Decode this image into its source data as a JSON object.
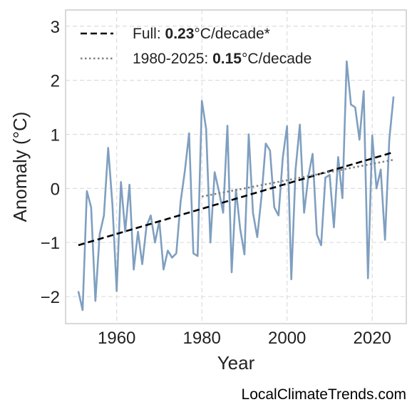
{
  "chart_data": {
    "type": "line",
    "title": "",
    "xlabel": "Year",
    "ylabel": "Anomaly (°C)",
    "xlim": [
      1948,
      2028
    ],
    "ylim": [
      -2.5,
      3.3
    ],
    "xticks": [
      1960,
      1980,
      2000,
      2020
    ],
    "yticks": [
      -2,
      -1,
      0,
      1,
      2,
      3
    ],
    "ytick_labels": [
      "−2",
      "−1",
      "0",
      "1",
      "2",
      "3"
    ],
    "grid": true,
    "legend_position": "top-left",
    "series": [
      {
        "role": "anomaly",
        "color": "#7f9fc0",
        "style": "solid",
        "x": [
          1951,
          1952,
          1953,
          1954,
          1955,
          1956,
          1957,
          1958,
          1959,
          1960,
          1961,
          1962,
          1963,
          1964,
          1965,
          1966,
          1967,
          1968,
          1969,
          1970,
          1971,
          1972,
          1973,
          1974,
          1975,
          1976,
          1977,
          1978,
          1979,
          1980,
          1981,
          1982,
          1983,
          1984,
          1985,
          1986,
          1987,
          1988,
          1989,
          1990,
          1991,
          1992,
          1993,
          1994,
          1995,
          1996,
          1997,
          1998,
          1999,
          2000,
          2001,
          2002,
          2003,
          2004,
          2005,
          2006,
          2007,
          2008,
          2009,
          2010,
          2011,
          2012,
          2013,
          2014,
          2015,
          2016,
          2017,
          2018,
          2019,
          2020,
          2021,
          2022,
          2023,
          2024,
          2025
        ],
        "y": [
          -1.9,
          -2.25,
          -0.05,
          -0.35,
          -2.08,
          -0.85,
          -0.5,
          0.75,
          -0.3,
          -1.9,
          0.12,
          -0.8,
          0.07,
          -1.5,
          -0.8,
          -1.4,
          -0.7,
          -0.5,
          -1.0,
          -0.6,
          -1.5,
          -1.15,
          -1.28,
          -1.2,
          -0.25,
          0.32,
          1.02,
          -1.2,
          -1.25,
          1.62,
          1.1,
          -1.0,
          0.3,
          -0.05,
          -0.45,
          1.16,
          -1.55,
          -0.02,
          -0.75,
          -1.22,
          1.0,
          -0.45,
          -0.9,
          -0.15,
          0.83,
          0.7,
          -0.35,
          -0.5,
          0.57,
          1.15,
          -1.68,
          0.35,
          1.18,
          -0.45,
          0.22,
          0.64,
          -0.85,
          -1.05,
          0.2,
          0.25,
          -0.72,
          0.58,
          -0.18,
          2.35,
          1.55,
          1.5,
          0.9,
          1.8,
          -1.66,
          0.98,
          0.0,
          0.35,
          -0.95,
          0.9,
          1.7
        ]
      },
      {
        "role": "trend-full",
        "color": "#000000",
        "style": "dashed",
        "x": [
          1951,
          2025
        ],
        "y": [
          -1.05,
          0.67
        ]
      },
      {
        "role": "trend-recent",
        "color": "#808080",
        "style": "dotted",
        "x": [
          1980,
          2025
        ],
        "y": [
          -0.15,
          0.53
        ]
      }
    ],
    "legend": [
      {
        "prefix": "Full: ",
        "value": "0.23",
        "suffix": "°C/decade*",
        "color": "#000000",
        "style": "dashed"
      },
      {
        "prefix": "1980-2025: ",
        "value": "0.15",
        "suffix": "°C/decade",
        "color": "#808080",
        "style": "dotted"
      }
    ]
  },
  "footer": {
    "source": "LocalClimateTrends.com"
  }
}
